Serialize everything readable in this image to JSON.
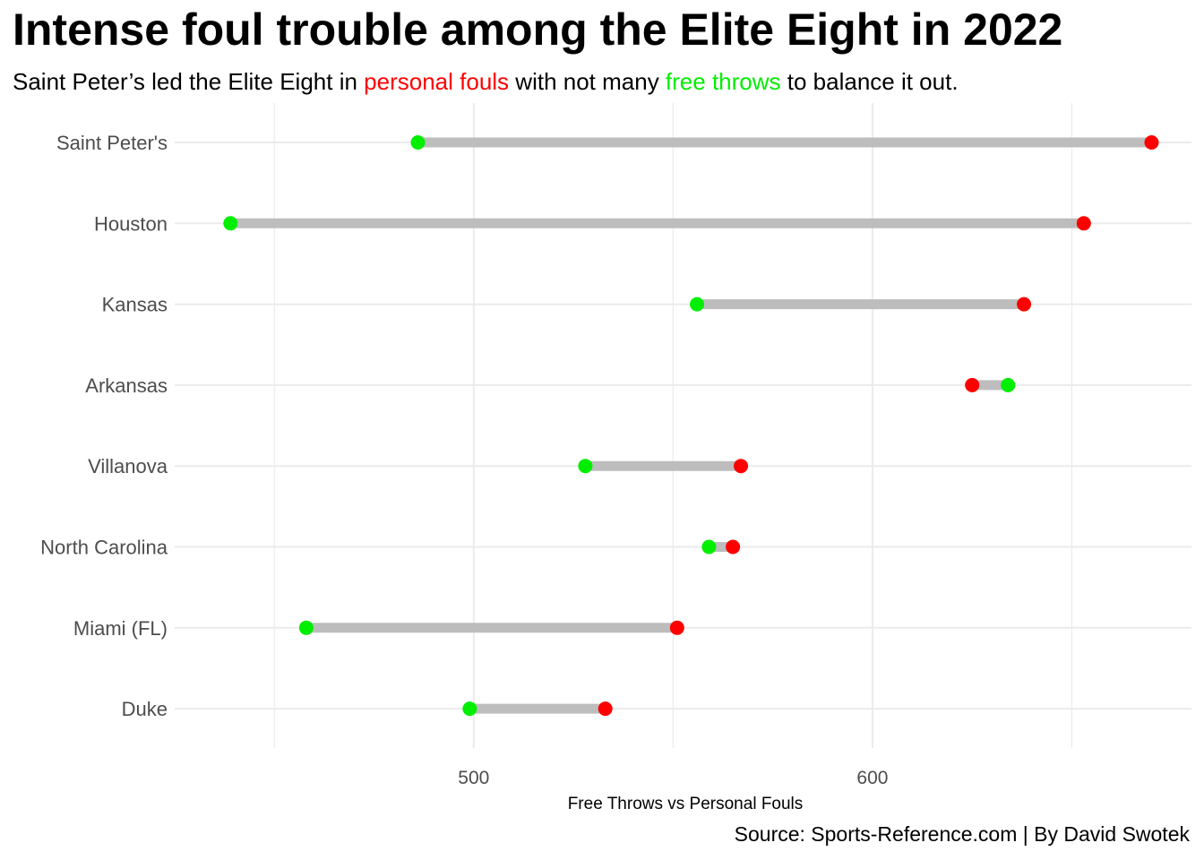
{
  "title": "Intense foul trouble among the Elite Eight in 2022",
  "subtitle": {
    "before": "Saint Peter’s led the Elite Eight in ",
    "fouls_text": "personal fouls",
    "middle": " with not many ",
    "ft_text": "free throws",
    "after": " to balance it out."
  },
  "caption": "Source: Sports-Reference.com | By David Swotek",
  "colors": {
    "personal_fouls": "#ff0000",
    "free_throws": "#00ee00",
    "segment": "#bdbdbd",
    "grid": "#ebebeb"
  },
  "chart_data": {
    "type": "dumbbell",
    "xlabel": "Free Throws vs Personal Fouls",
    "ylabel": "",
    "xlim": [
      425,
      680
    ],
    "x_ticks": [
      500,
      600
    ],
    "x_minor": [
      450,
      550,
      650
    ],
    "grid": true,
    "series": [
      {
        "name": "Free Throws",
        "color": "#00ee00"
      },
      {
        "name": "Personal Fouls",
        "color": "#ff0000"
      }
    ],
    "teams": [
      {
        "name": "Saint Peter's",
        "free_throws": 486,
        "personal_fouls": 670
      },
      {
        "name": "Houston",
        "free_throws": 439,
        "personal_fouls": 653
      },
      {
        "name": "Kansas",
        "free_throws": 556,
        "personal_fouls": 638
      },
      {
        "name": "Arkansas",
        "free_throws": 634,
        "personal_fouls": 625
      },
      {
        "name": "Villanova",
        "free_throws": 528,
        "personal_fouls": 567
      },
      {
        "name": "North Carolina",
        "free_throws": 559,
        "personal_fouls": 565
      },
      {
        "name": "Miami (FL)",
        "free_throws": 458,
        "personal_fouls": 551
      },
      {
        "name": "Duke",
        "free_throws": 499,
        "personal_fouls": 533
      }
    ]
  }
}
